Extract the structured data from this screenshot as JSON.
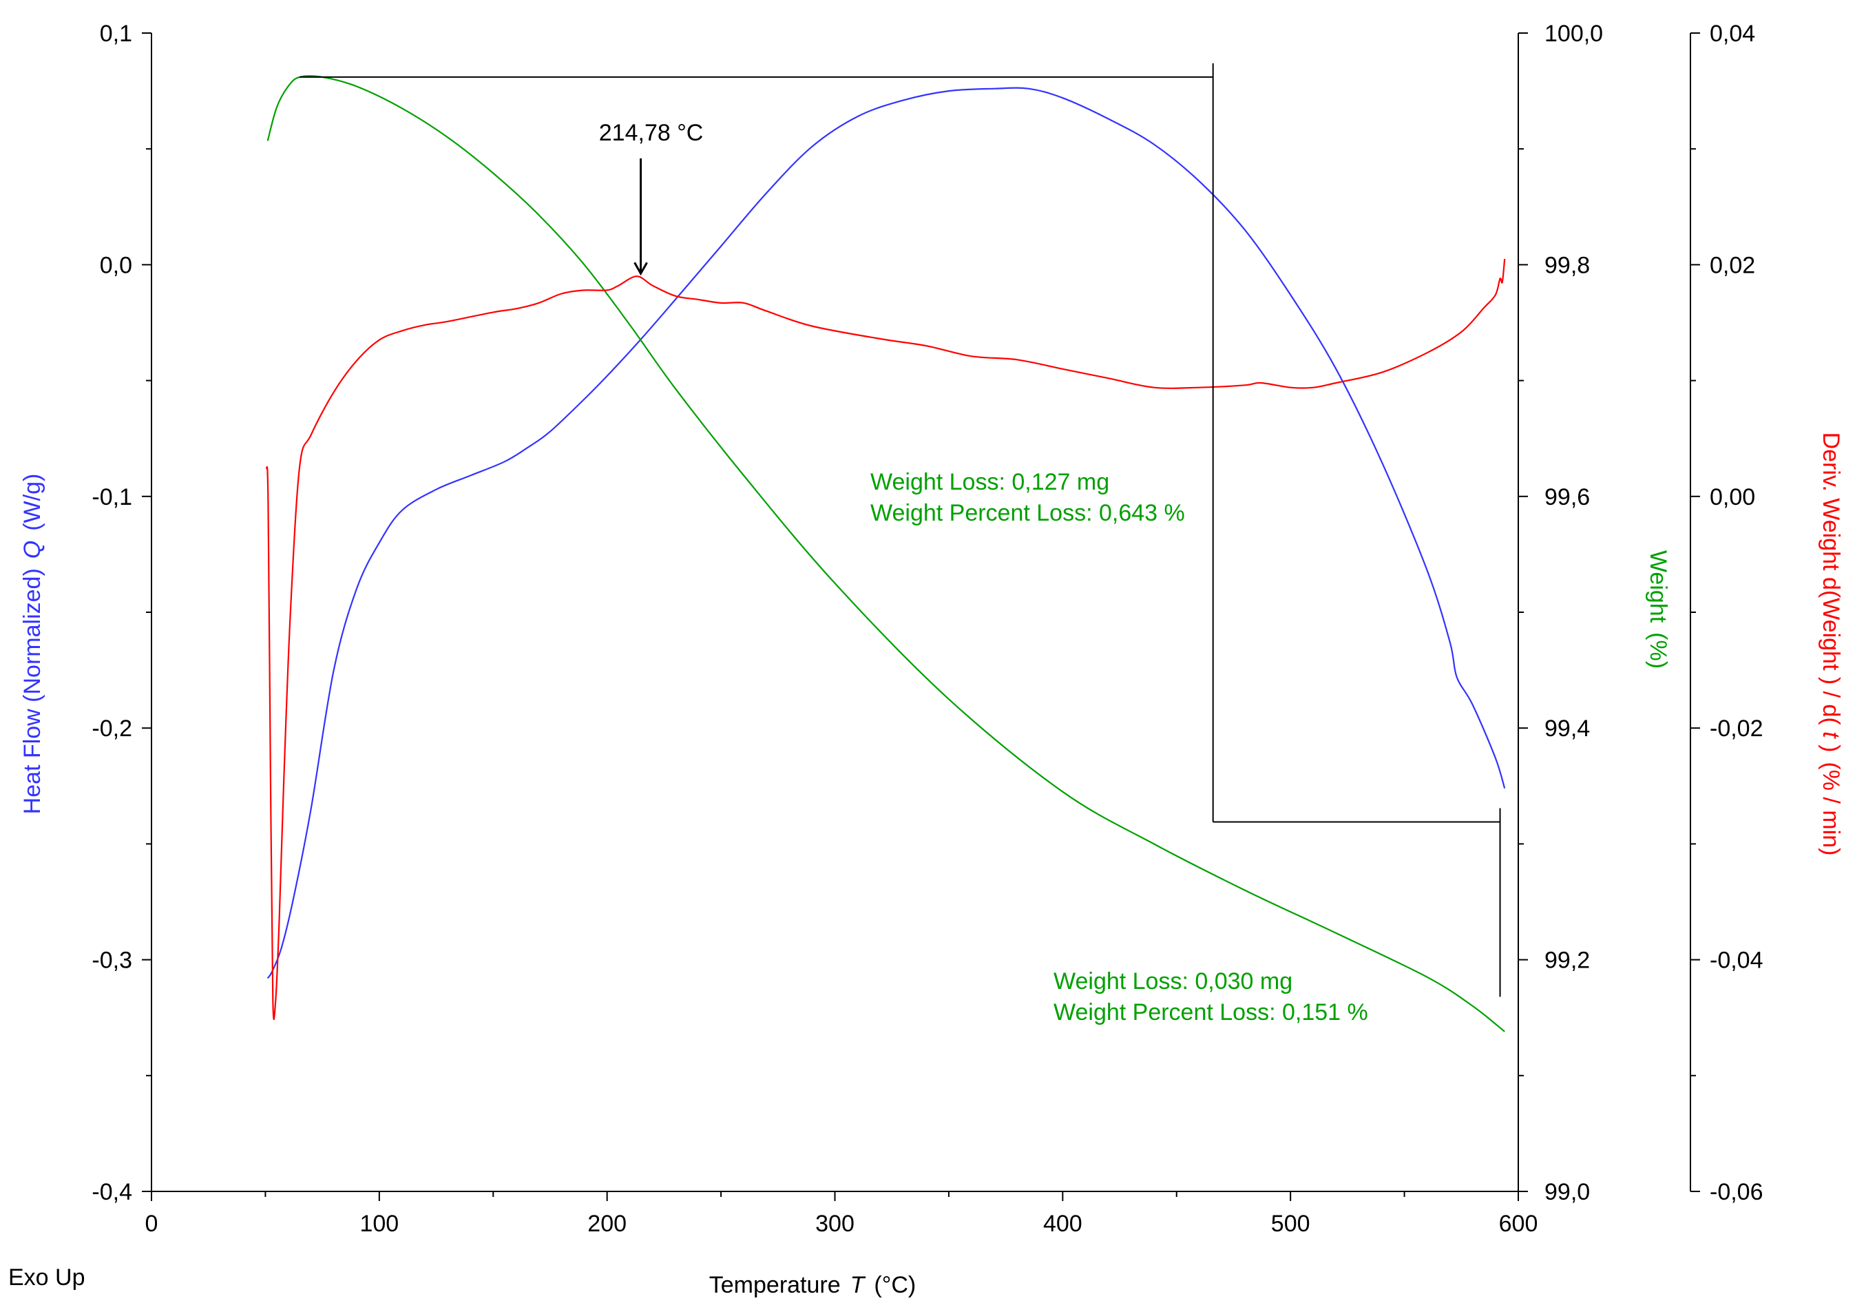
{
  "chart_data": {
    "type": "line",
    "title": "",
    "exo_label": "Exo Up",
    "x_axis": {
      "label": "Temperature",
      "symbol": "T",
      "unit": "(°C)",
      "range": [
        0,
        600
      ],
      "ticks": [
        0,
        100,
        200,
        300,
        400,
        500,
        600
      ],
      "tick_labels": [
        "0",
        "100",
        "200",
        "300",
        "400",
        "500",
        "600"
      ]
    },
    "y_axes": {
      "heat_flow": {
        "label": "Heat Flow (Normalized)",
        "symbol": "Q",
        "unit": "(W/g)",
        "color": "#3333ff",
        "range": [
          -0.4,
          0.1
        ],
        "ticks": [
          0.1,
          0.0,
          -0.1,
          -0.2,
          -0.3,
          -0.4
        ],
        "tick_labels": [
          "0,1",
          "0,0",
          "-0,1",
          "-0,2",
          "-0,3",
          "-0,4"
        ]
      },
      "weight": {
        "label": "Weight",
        "unit": "(%)",
        "color": "#00a000",
        "range": [
          99.0,
          100.0
        ],
        "ticks": [
          100.0,
          99.8,
          99.6,
          99.4,
          99.2,
          99.0
        ],
        "tick_labels": [
          "100,0",
          "99,8",
          "99,6",
          "99,4",
          "99,2",
          "99,0"
        ]
      },
      "deriv_weight": {
        "label": "Deriv. Weight d(Weight ) / d( t ) (% / min)",
        "label_parts": [
          "Deriv. Weight d(Weight ) / d( ",
          "t",
          " )",
          "(% / min)"
        ],
        "color": "#ff0000",
        "range": [
          -0.06,
          0.04
        ],
        "ticks": [
          0.04,
          0.02,
          0.0,
          -0.02,
          -0.04,
          -0.06
        ],
        "tick_labels": [
          "0,04",
          "0,02",
          "0,00",
          "-0,02",
          "-0,04",
          "-0,06"
        ]
      }
    },
    "series": [
      {
        "name": "Heat Flow",
        "axis": "heat_flow",
        "color": "#3333ff",
        "x": [
          51,
          53,
          57,
          62,
          70,
          80,
          90,
          100,
          110,
          125,
          140,
          155,
          165,
          175,
          190,
          200,
          215,
          230,
          250,
          270,
          290,
          310,
          330,
          350,
          370,
          385,
          400,
          420,
          440,
          460,
          480,
          500,
          520,
          540,
          560,
          570,
          573,
          580,
          590,
          594
        ],
        "values": [
          -0.308,
          -0.305,
          -0.295,
          -0.275,
          -0.235,
          -0.175,
          -0.14,
          -0.12,
          -0.106,
          -0.097,
          -0.091,
          -0.085,
          -0.079,
          -0.072,
          -0.058,
          -0.048,
          -0.032,
          -0.015,
          0.008,
          0.031,
          0.051,
          0.064,
          0.071,
          0.075,
          0.076,
          0.076,
          0.072,
          0.063,
          0.052,
          0.036,
          0.015,
          -0.013,
          -0.045,
          -0.085,
          -0.132,
          -0.163,
          -0.178,
          -0.19,
          -0.213,
          -0.226
        ]
      },
      {
        "name": "Weight",
        "axis": "weight",
        "color": "#00a000",
        "x": [
          51,
          55,
          60,
          65,
          75,
          90,
          110,
          130,
          150,
          170,
          190,
          210,
          230,
          260,
          300,
          350,
          400,
          440,
          480,
          520,
          560,
          580,
          594
        ],
        "values": [
          99.907,
          99.936,
          99.954,
          99.962,
          99.962,
          99.954,
          99.935,
          99.91,
          99.879,
          99.843,
          99.8,
          99.748,
          99.693,
          99.618,
          99.525,
          99.425,
          99.345,
          99.3,
          99.26,
          99.223,
          99.185,
          99.16,
          99.138
        ]
      },
      {
        "name": "Deriv. Weight",
        "axis": "deriv_weight",
        "color": "#ff0000",
        "x": [
          50.5,
          51.2,
          52.3,
          53.3,
          54.5,
          56,
          58,
          61,
          65,
          70,
          80,
          90,
          100,
          110,
          120,
          130,
          150,
          160,
          170,
          180,
          190,
          200,
          205,
          213,
          220,
          230,
          240,
          250,
          260,
          270,
          290,
          320,
          340,
          360,
          380,
          400,
          420,
          440,
          460,
          480,
          487,
          500,
          510,
          520,
          540,
          560,
          575,
          585,
          590,
          592,
          593,
          594
        ],
        "values": [
          0.0025,
          -0.0005,
          -0.025,
          -0.0435,
          -0.0435,
          -0.037,
          -0.025,
          -0.01,
          0.0025,
          0.0053,
          0.009,
          0.0117,
          0.0135,
          0.0143,
          0.0148,
          0.0151,
          0.0159,
          0.0162,
          0.0167,
          0.0175,
          0.0178,
          0.0178,
          0.0182,
          0.019,
          0.0182,
          0.0173,
          0.017,
          0.0167,
          0.0167,
          0.016,
          0.0147,
          0.0136,
          0.013,
          0.0121,
          0.0118,
          0.011,
          0.0102,
          0.0094,
          0.0094,
          0.0096,
          0.0098,
          0.0094,
          0.0094,
          0.0098,
          0.0107,
          0.0124,
          0.0142,
          0.0163,
          0.0174,
          0.0188,
          0.0185,
          0.0205
        ]
      }
    ],
    "peak_annotation": {
      "label": "214,78 °C",
      "x": 214.78,
      "deriv_value": 0.019
    },
    "step_markers": [
      {
        "x_start": 65,
        "x_end": 466,
        "weight_start": 99.962,
        "weight_end": 99.319
      },
      {
        "x_start": 466,
        "x_end": 592,
        "weight_start": 99.319,
        "weight_end": 99.168
      }
    ],
    "step_annotations": [
      {
        "loss_text": "Weight Loss: 0,127 mg",
        "percent_text": "Weight Percent Loss: 0,643 %"
      },
      {
        "loss_text": "Weight Loss: 0,030 mg",
        "percent_text": "Weight Percent Loss: 0,151 %"
      }
    ]
  }
}
